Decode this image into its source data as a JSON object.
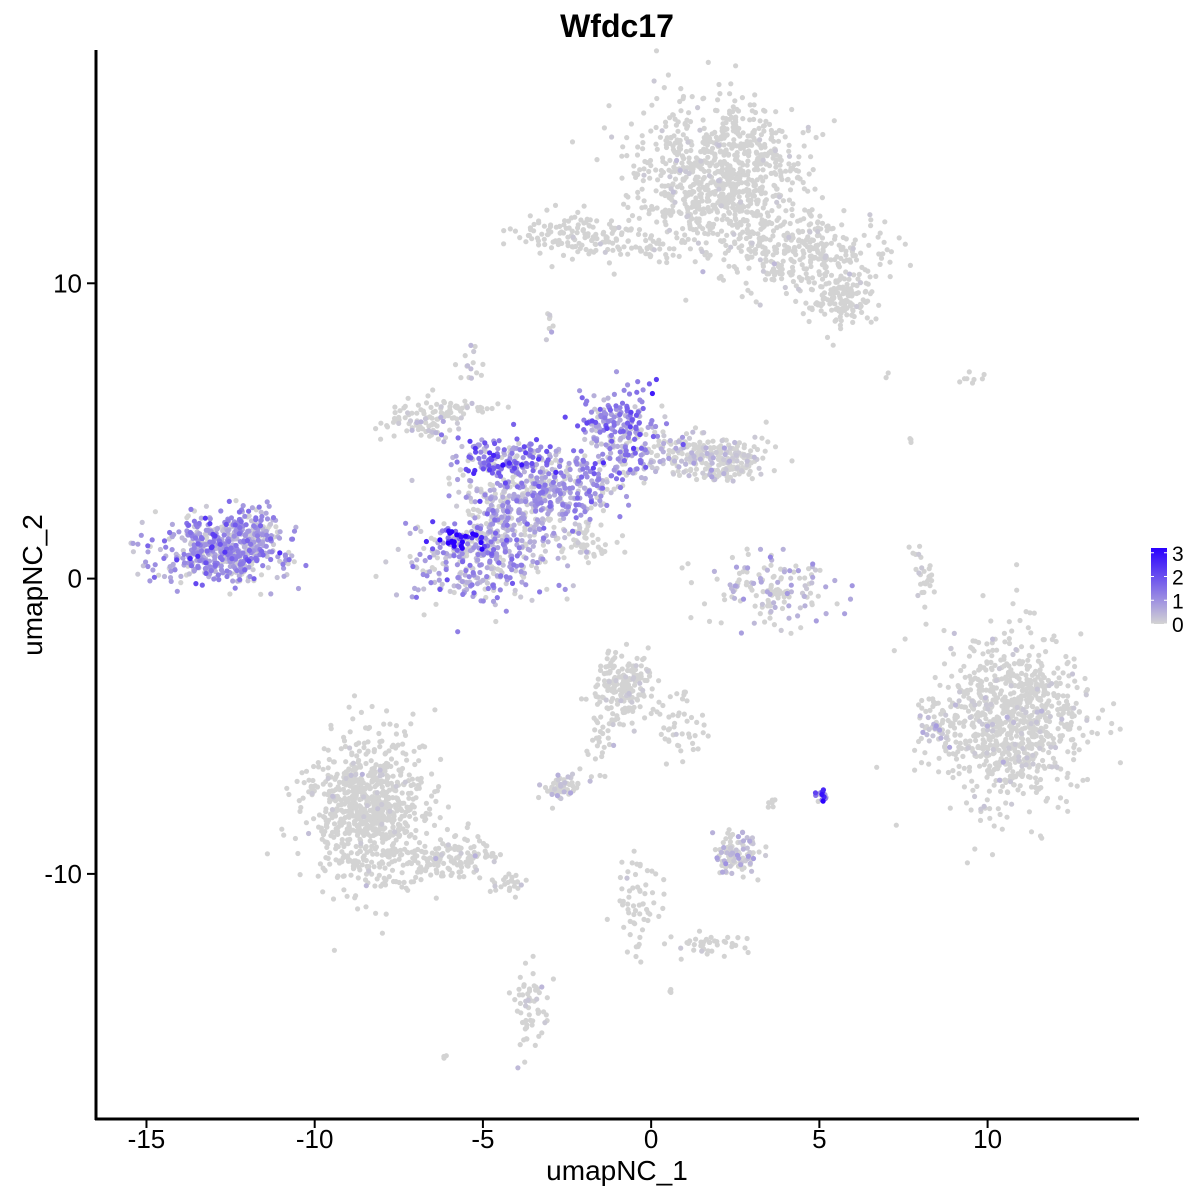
{
  "chart_data": {
    "type": "scatter",
    "title": "Wfdc17",
    "xlabel": "umapNC_1",
    "ylabel": "umapNC_2",
    "xlim": [
      -16.5,
      14.5
    ],
    "ylim": [
      -18.3,
      17.9
    ],
    "xticks": [
      -15,
      -10,
      -5,
      0,
      5,
      10
    ],
    "yticks": [
      -10,
      0,
      10
    ],
    "xtick_labels": [
      "-15",
      "-10",
      "-5",
      "0",
      "5",
      "10"
    ],
    "ytick_labels": [
      "-10",
      "0",
      "10"
    ],
    "color_scale": {
      "low": "#d3d3d3",
      "high": "#2a00ff",
      "min": 0,
      "max": 3.2,
      "ticks": [
        0,
        1,
        2,
        3
      ],
      "tick_labels": [
        "0",
        "1",
        "2",
        "3"
      ]
    },
    "grid": false,
    "legend_placement": "right",
    "clusters": [
      {
        "cx": 2.0,
        "cy": 13.5,
        "sx": 1.2,
        "sy": 1.3,
        "n": 900,
        "expr": 0.02
      },
      {
        "cx": 4.5,
        "cy": 11.2,
        "sx": 1.1,
        "sy": 0.7,
        "n": 300,
        "expr": 0.02
      },
      {
        "cx": 5.6,
        "cy": 9.6,
        "sx": 0.6,
        "sy": 0.5,
        "n": 150,
        "expr": 0.02
      },
      {
        "cx": -2.2,
        "cy": 11.7,
        "sx": 0.8,
        "sy": 0.35,
        "n": 130,
        "expr": 0.02
      },
      {
        "cx": -0.4,
        "cy": 11.2,
        "sx": 0.8,
        "sy": 0.15,
        "n": 40,
        "expr": 0.02
      },
      {
        "cx": -12.8,
        "cy": 1.0,
        "sx": 1.0,
        "sy": 0.55,
        "n": 550,
        "expr": 0.9
      },
      {
        "cx": -11.7,
        "cy": 1.6,
        "sx": 0.4,
        "sy": 0.5,
        "n": 60,
        "expr": 0.7
      },
      {
        "cx": -5.0,
        "cy": 0.6,
        "sx": 1.1,
        "sy": 0.8,
        "n": 350,
        "expr": 0.8
      },
      {
        "cx": -5.6,
        "cy": 1.3,
        "sx": 0.35,
        "sy": 0.2,
        "n": 40,
        "expr": 2.6
      },
      {
        "cx": -4.0,
        "cy": 2.5,
        "sx": 0.9,
        "sy": 0.7,
        "n": 300,
        "expr": 0.7
      },
      {
        "cx": -4.4,
        "cy": 4.0,
        "sx": 0.8,
        "sy": 0.35,
        "n": 170,
        "expr": 1.2
      },
      {
        "cx": -2.4,
        "cy": 3.2,
        "sx": 0.8,
        "sy": 0.6,
        "n": 200,
        "expr": 0.8
      },
      {
        "cx": -1.0,
        "cy": 5.0,
        "sx": 0.6,
        "sy": 0.8,
        "n": 220,
        "expr": 1.1
      },
      {
        "cx": 0.8,
        "cy": 4.2,
        "sx": 0.8,
        "sy": 0.4,
        "n": 160,
        "expr": 0.4
      },
      {
        "cx": 2.3,
        "cy": 4.0,
        "sx": 0.6,
        "sy": 0.4,
        "n": 150,
        "expr": 0.15
      },
      {
        "cx": -6.8,
        "cy": 5.3,
        "sx": 0.6,
        "sy": 0.35,
        "n": 90,
        "expr": 0.3
      },
      {
        "cx": -5.5,
        "cy": 5.8,
        "sx": 0.5,
        "sy": 0.15,
        "n": 30,
        "expr": 0.1
      },
      {
        "cx": -1.9,
        "cy": 1.3,
        "sx": 0.5,
        "sy": 0.3,
        "n": 50,
        "expr": 0.2
      },
      {
        "cx": 3.5,
        "cy": -0.3,
        "sx": 0.9,
        "sy": 0.6,
        "n": 150,
        "expr": 0.5
      },
      {
        "cx": 10.7,
        "cy": -4.8,
        "sx": 1.1,
        "sy": 1.4,
        "n": 900,
        "expr": 0.08
      },
      {
        "cx": 8.1,
        "cy": 0.2,
        "sx": 0.15,
        "sy": 0.5,
        "n": 30,
        "expr": 0.1
      },
      {
        "cx": 8.4,
        "cy": -5.0,
        "sx": 0.3,
        "sy": 0.5,
        "n": 40,
        "expr": 0.3
      },
      {
        "cx": -8.4,
        "cy": -7.8,
        "sx": 0.9,
        "sy": 1.2,
        "n": 800,
        "expr": 0.02
      },
      {
        "cx": -6.0,
        "cy": -9.5,
        "sx": 0.8,
        "sy": 0.35,
        "n": 140,
        "expr": 0.03
      },
      {
        "cx": -4.2,
        "cy": -10.3,
        "sx": 0.3,
        "sy": 0.2,
        "n": 25,
        "expr": 0.02
      },
      {
        "cx": -0.8,
        "cy": -3.7,
        "sx": 0.4,
        "sy": 0.6,
        "n": 200,
        "expr": 0.05
      },
      {
        "cx": 1.0,
        "cy": -4.8,
        "sx": 0.4,
        "sy": 0.7,
        "n": 45,
        "expr": 0.02
      },
      {
        "cx": -1.5,
        "cy": -5.5,
        "sx": 0.25,
        "sy": 0.6,
        "n": 30,
        "expr": 0.02
      },
      {
        "cx": -2.7,
        "cy": -7.0,
        "sx": 0.35,
        "sy": 0.25,
        "n": 60,
        "expr": 0.3
      },
      {
        "cx": 2.5,
        "cy": -9.3,
        "sx": 0.35,
        "sy": 0.35,
        "n": 100,
        "expr": 0.4
      },
      {
        "cx": 5.1,
        "cy": -7.3,
        "sx": 0.12,
        "sy": 0.15,
        "n": 15,
        "expr": 1.5
      },
      {
        "cx": -3.6,
        "cy": -14.5,
        "sx": 0.25,
        "sy": 0.7,
        "n": 60,
        "expr": 0.02
      },
      {
        "cx": -0.4,
        "cy": -11.0,
        "sx": 0.3,
        "sy": 0.8,
        "n": 60,
        "expr": 0.02
      },
      {
        "cx": 1.8,
        "cy": -12.4,
        "sx": 0.6,
        "sy": 0.25,
        "n": 40,
        "expr": 0.02
      },
      {
        "cx": -5.4,
        "cy": 7.2,
        "sx": 0.2,
        "sy": 0.3,
        "n": 15,
        "expr": 0.3
      },
      {
        "cx": -3.0,
        "cy": 8.7,
        "sx": 0.1,
        "sy": 0.3,
        "n": 8,
        "expr": 0.3
      },
      {
        "cx": 9.6,
        "cy": 6.7,
        "sx": 0.4,
        "sy": 0.15,
        "n": 8,
        "expr": 0.0
      },
      {
        "cx": 3.6,
        "cy": -7.6,
        "sx": 0.1,
        "sy": 0.15,
        "n": 6,
        "expr": 0.0
      },
      {
        "cx": -6.2,
        "cy": -16.2,
        "sx": 0.05,
        "sy": 0.05,
        "n": 3,
        "expr": 0.0
      },
      {
        "cx": 0.6,
        "cy": -14.0,
        "sx": 0.05,
        "sy": 0.05,
        "n": 3,
        "expr": 0.0
      },
      {
        "cx": 7.0,
        "cy": 6.9,
        "sx": 0.05,
        "sy": 0.05,
        "n": 2,
        "expr": 0.0
      },
      {
        "cx": 7.7,
        "cy": 4.8,
        "sx": 0.05,
        "sy": 0.15,
        "n": 3,
        "expr": 0.0
      }
    ]
  }
}
